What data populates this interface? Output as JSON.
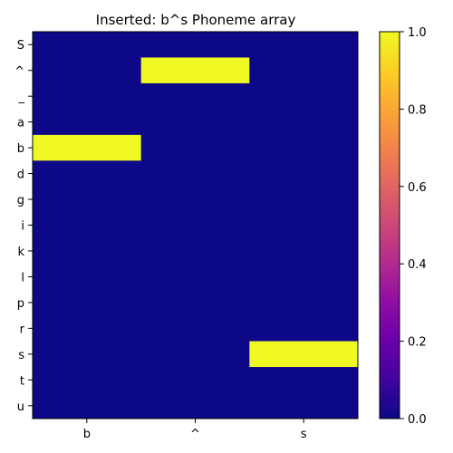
{
  "chart_data": {
    "type": "heatmap",
    "title": "Inserted: b^s    Phoneme array",
    "xlabel": "",
    "ylabel": "",
    "x_categories": [
      "b",
      "^",
      "s"
    ],
    "y_categories": [
      "S",
      "^",
      "_",
      "a",
      "b",
      "d",
      "g",
      "i",
      "k",
      "l",
      "p",
      "r",
      "s",
      "t",
      "u"
    ],
    "values": [
      [
        0,
        0,
        0
      ],
      [
        0,
        1,
        0
      ],
      [
        0,
        0,
        0
      ],
      [
        0,
        0,
        0
      ],
      [
        1,
        0,
        0
      ],
      [
        0,
        0,
        0
      ],
      [
        0,
        0,
        0
      ],
      [
        0,
        0,
        0
      ],
      [
        0,
        0,
        0
      ],
      [
        0,
        0,
        0
      ],
      [
        0,
        0,
        0
      ],
      [
        0,
        0,
        0
      ],
      [
        0,
        0,
        1
      ],
      [
        0,
        0,
        0
      ],
      [
        0,
        0,
        0
      ]
    ],
    "colormap": "plasma",
    "vmin": 0.0,
    "vmax": 1.0,
    "colorbar_ticks": [
      "0.0",
      "0.2",
      "0.4",
      "0.6",
      "0.8",
      "1.0"
    ],
    "colors": {
      "low": "#0d0887",
      "high": "#f0f921"
    }
  }
}
